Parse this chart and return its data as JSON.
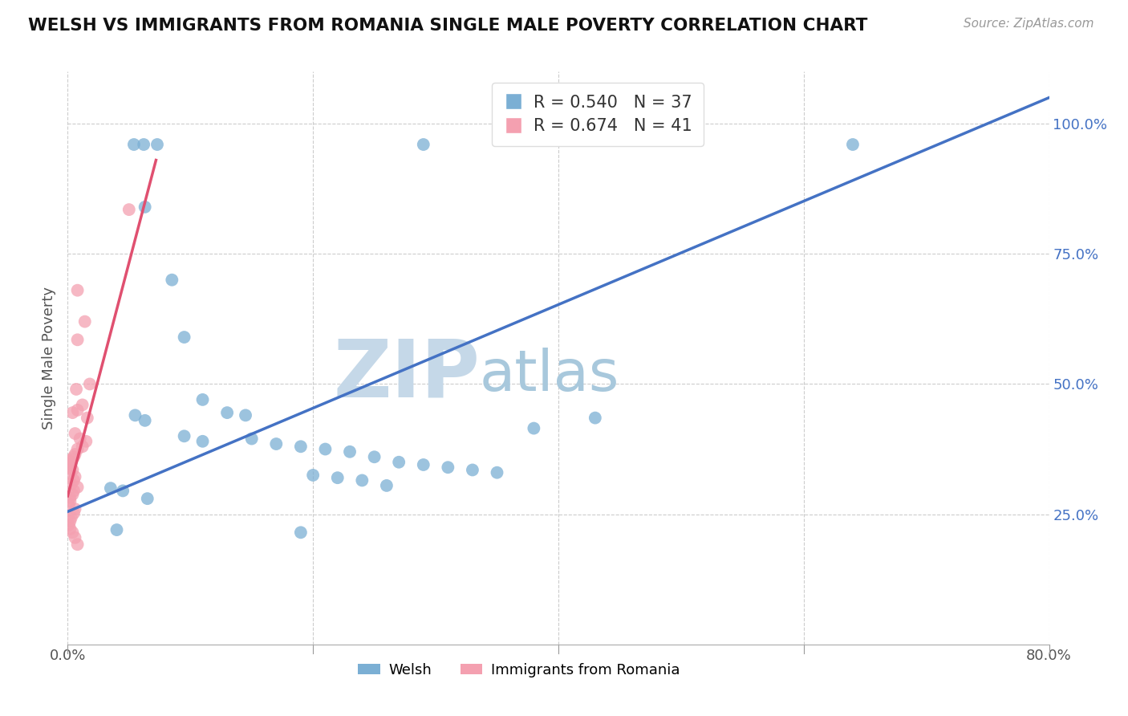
{
  "title": "WELSH VS IMMIGRANTS FROM ROMANIA SINGLE MALE POVERTY CORRELATION CHART",
  "source": "Source: ZipAtlas.com",
  "ylabel": "Single Male Poverty",
  "xlim": [
    0.0,
    0.8
  ],
  "ylim": [
    0.0,
    1.1
  ],
  "xticks": [
    0.0,
    0.2,
    0.4,
    0.6,
    0.8
  ],
  "xticklabels": [
    "0.0%",
    "",
    "",
    "",
    "80.0%"
  ],
  "yticks": [
    0.25,
    0.5,
    0.75,
    1.0
  ],
  "yticklabels": [
    "25.0%",
    "50.0%",
    "75.0%",
    "100.0%"
  ],
  "welsh_R": 0.54,
  "welsh_N": 37,
  "romania_R": 0.674,
  "romania_N": 41,
  "blue_color": "#7BAFD4",
  "pink_color": "#F4A0B0",
  "blue_line_color": "#4472C4",
  "pink_line_color": "#E05070",
  "watermark_zip_color": "#C5D8E8",
  "watermark_atlas_color": "#A8C8DC",
  "grid_color": "#CCCCCC",
  "grid_style": "--",
  "legend_label_welsh": "Welsh",
  "legend_label_romania": "Immigrants from Romania",
  "welsh_scatter": [
    [
      0.054,
      0.96
    ],
    [
      0.062,
      0.96
    ],
    [
      0.073,
      0.96
    ],
    [
      0.29,
      0.96
    ],
    [
      0.64,
      0.96
    ],
    [
      0.063,
      0.84
    ],
    [
      0.085,
      0.7
    ],
    [
      0.095,
      0.59
    ],
    [
      0.11,
      0.47
    ],
    [
      0.055,
      0.44
    ],
    [
      0.063,
      0.43
    ],
    [
      0.13,
      0.445
    ],
    [
      0.145,
      0.44
    ],
    [
      0.095,
      0.4
    ],
    [
      0.11,
      0.39
    ],
    [
      0.15,
      0.395
    ],
    [
      0.17,
      0.385
    ],
    [
      0.19,
      0.38
    ],
    [
      0.21,
      0.375
    ],
    [
      0.23,
      0.37
    ],
    [
      0.25,
      0.36
    ],
    [
      0.27,
      0.35
    ],
    [
      0.29,
      0.345
    ],
    [
      0.31,
      0.34
    ],
    [
      0.33,
      0.335
    ],
    [
      0.35,
      0.33
    ],
    [
      0.2,
      0.325
    ],
    [
      0.22,
      0.32
    ],
    [
      0.24,
      0.315
    ],
    [
      0.26,
      0.305
    ],
    [
      0.035,
      0.3
    ],
    [
      0.045,
      0.295
    ],
    [
      0.065,
      0.28
    ],
    [
      0.04,
      0.22
    ],
    [
      0.19,
      0.215
    ],
    [
      0.43,
      0.435
    ],
    [
      0.38,
      0.415
    ]
  ],
  "romania_scatter": [
    [
      0.008,
      0.68
    ],
    [
      0.014,
      0.62
    ],
    [
      0.008,
      0.585
    ],
    [
      0.018,
      0.5
    ],
    [
      0.007,
      0.49
    ],
    [
      0.012,
      0.46
    ],
    [
      0.008,
      0.45
    ],
    [
      0.004,
      0.445
    ],
    [
      0.016,
      0.435
    ],
    [
      0.006,
      0.405
    ],
    [
      0.01,
      0.395
    ],
    [
      0.015,
      0.39
    ],
    [
      0.012,
      0.38
    ],
    [
      0.008,
      0.375
    ],
    [
      0.006,
      0.365
    ],
    [
      0.005,
      0.36
    ],
    [
      0.003,
      0.355
    ],
    [
      0.002,
      0.35
    ],
    [
      0.002,
      0.345
    ],
    [
      0.001,
      0.34
    ],
    [
      0.004,
      0.335
    ],
    [
      0.002,
      0.328
    ],
    [
      0.006,
      0.322
    ],
    [
      0.005,
      0.315
    ],
    [
      0.003,
      0.308
    ],
    [
      0.008,
      0.302
    ],
    [
      0.005,
      0.295
    ],
    [
      0.004,
      0.288
    ],
    [
      0.002,
      0.282
    ],
    [
      0.002,
      0.275
    ],
    [
      0.001,
      0.268
    ],
    [
      0.006,
      0.26
    ],
    [
      0.005,
      0.252
    ],
    [
      0.003,
      0.244
    ],
    [
      0.002,
      0.237
    ],
    [
      0.001,
      0.23
    ],
    [
      0.002,
      0.222
    ],
    [
      0.004,
      0.215
    ],
    [
      0.006,
      0.205
    ],
    [
      0.008,
      0.192
    ],
    [
      0.05,
      0.835
    ]
  ],
  "blue_trendline": [
    [
      0.0,
      0.255
    ],
    [
      0.8,
      1.05
    ]
  ],
  "pink_trendline": [
    [
      0.0,
      0.285
    ],
    [
      0.072,
      0.93
    ]
  ]
}
